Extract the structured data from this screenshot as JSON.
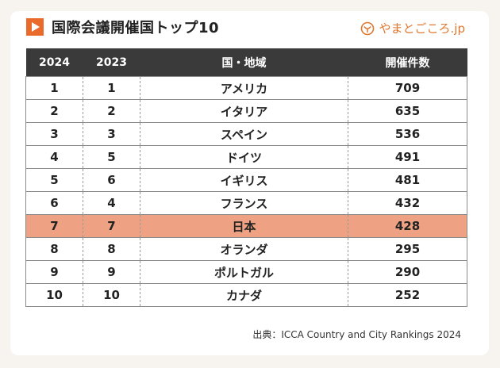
{
  "header": {
    "title": "国際会議開催国トップ10",
    "brand_text": "やまとごころ.jp",
    "play_icon": "play-icon",
    "brand_icon": "yamatogokoro-logo-icon",
    "accent_color": "#ea6a2b",
    "highlight_color": "#eea283"
  },
  "chart_data": {
    "type": "table",
    "columns": [
      "2024",
      "2023",
      "国・地域",
      "開催件数"
    ],
    "rows": [
      {
        "rank_2024": "1",
        "rank_2023": "1",
        "country": "アメリカ",
        "count": 709
      },
      {
        "rank_2024": "2",
        "rank_2023": "2",
        "country": "イタリア",
        "count": 635
      },
      {
        "rank_2024": "3",
        "rank_2023": "3",
        "country": "スペイン",
        "count": 536
      },
      {
        "rank_2024": "4",
        "rank_2023": "5",
        "country": "ドイツ",
        "count": 491
      },
      {
        "rank_2024": "5",
        "rank_2023": "6",
        "country": "イギリス",
        "count": 481
      },
      {
        "rank_2024": "6",
        "rank_2023": "4",
        "country": "フランス",
        "count": 432
      },
      {
        "rank_2024": "7",
        "rank_2023": "7",
        "country": "日本",
        "count": 428,
        "highlight": true
      },
      {
        "rank_2024": "8",
        "rank_2023": "8",
        "country": "オランダ",
        "count": 295
      },
      {
        "rank_2024": "9",
        "rank_2023": "9",
        "country": "ポルトガル",
        "count": 290
      },
      {
        "rank_2024": "10",
        "rank_2023": "10",
        "country": "カナダ",
        "count": 252
      }
    ]
  },
  "footer": {
    "source": "出典：ICCA Country and City Rankings 2024"
  }
}
